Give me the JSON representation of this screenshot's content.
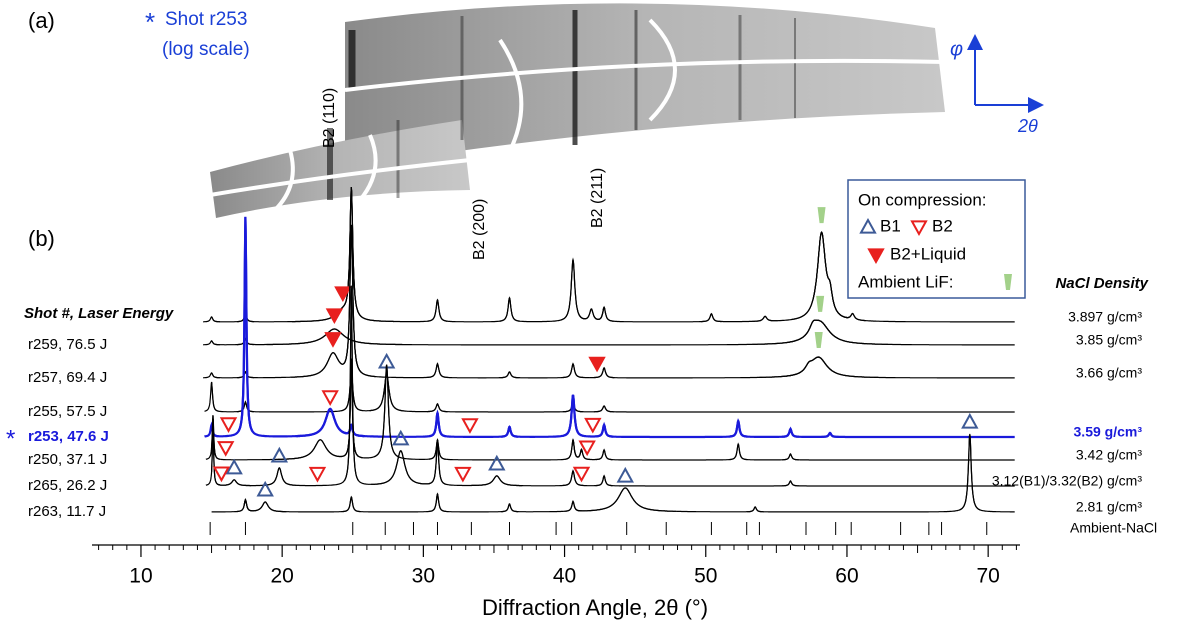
{
  "panel_a": {
    "label": "(a)",
    "star": "*",
    "shot": "Shot r253",
    "scale": "(log scale)",
    "reflections": [
      "B2 (110)",
      "B2 (200)",
      "B2 (211)"
    ],
    "axis_phi": "φ",
    "axis_2theta": "2θ"
  },
  "chart_data": {
    "type": "line",
    "label": "(b)",
    "xlabel": "Diffraction Angle, 2θ (°)",
    "xlim": [
      7,
      72
    ],
    "xticks": [
      10,
      20,
      30,
      40,
      50,
      60,
      70
    ],
    "xminorticks": [
      7,
      8,
      9,
      11,
      12,
      13,
      14,
      15,
      16,
      17,
      18,
      19,
      21,
      22,
      23,
      24,
      25,
      26,
      27,
      28,
      29,
      31,
      32,
      33,
      34,
      35,
      36,
      37,
      38,
      39,
      41,
      42,
      43,
      44,
      45,
      46,
      47,
      48,
      49,
      51,
      52,
      53,
      54,
      55,
      56,
      57,
      58,
      59,
      61,
      62,
      63,
      64,
      65,
      66,
      67,
      68,
      69,
      71,
      72
    ],
    "row_header": "Shot #, Laser Energy",
    "density_header": "NaCl Density",
    "legend": {
      "title": "On compression:",
      "b1": "B1",
      "b2": "B2",
      "b2_liquid": "B2+Liquid",
      "lif": "Ambient LiF:"
    },
    "marker_colors": {
      "b1": "#3d5a96",
      "b2": "#e8201e",
      "lif": "#a3d18a"
    },
    "reference": {
      "name": "Ambient-NaCl",
      "x": [
        14.9,
        17.4,
        25.0,
        27.3,
        29.3,
        31.0,
        33.4,
        36.1,
        39.4,
        40.5,
        44.4,
        47.2,
        50.4,
        52.9,
        53.8,
        57.1,
        59.2,
        60.3,
        63.8,
        65.8,
        66.7,
        69.9
      ]
    },
    "series": [
      {
        "name": null,
        "density": "3.897 g/cm³",
        "color": "#000000",
        "peak_x": [
          15.0,
          17.4,
          24.3,
          24.9,
          31.0,
          36.1,
          40.6,
          41.9,
          42.8,
          50.4,
          54.2,
          58.2,
          58.8,
          60.4
        ],
        "peak_height": [
          5,
          8,
          10,
          130,
          22,
          24,
          62,
          12,
          14,
          8,
          5,
          88,
          18,
          6
        ],
        "peak_width": [
          0.1,
          0.1,
          0.6,
          0.12,
          0.12,
          0.12,
          0.15,
          0.15,
          0.12,
          0.12,
          0.15,
          0.35,
          0.2,
          0.15
        ],
        "b1": [],
        "b2": [],
        "b2_liquid": [
          24.3
        ],
        "lif": [
          58.2
        ]
      },
      {
        "name": "r259, 76.5 J",
        "density": "3.85 g/cm³",
        "color": "#000000",
        "peak_x": [
          15.0,
          17.4,
          23.7,
          57.6,
          58.1
        ],
        "peak_height": [
          4,
          6,
          16,
          8,
          22
        ],
        "peak_width": [
          0.1,
          0.1,
          0.8,
          0.3,
          0.8
        ],
        "b1": [],
        "b2": [],
        "b2_liquid": [
          23.7
        ],
        "lif": [
          58.1
        ]
      },
      {
        "name": "r257, 69.4 J",
        "density": "3.66 g/cm³",
        "color": "#000000",
        "peak_x": [
          15.0,
          17.4,
          23.6,
          24.9,
          31.0,
          36.1,
          40.6,
          42.8,
          57.3,
          58.0
        ],
        "peak_height": [
          5,
          6,
          24,
          150,
          14,
          6,
          14,
          10,
          6,
          20
        ],
        "peak_width": [
          0.1,
          0.1,
          0.5,
          0.12,
          0.12,
          0.12,
          0.12,
          0.12,
          0.3,
          0.7
        ],
        "b1": [],
        "b2": [],
        "b2_liquid": [
          23.6,
          42.3
        ],
        "lif": [
          58.0
        ]
      },
      {
        "name": "r255, 57.5 J",
        "density": null,
        "color": "#000000",
        "peak_x": [
          15.0,
          17.4,
          24.9,
          27.4,
          31.0,
          40.6,
          42.8
        ],
        "peak_height": [
          30,
          10,
          40,
          38,
          8,
          8,
          6
        ],
        "peak_width": [
          0.08,
          0.1,
          0.12,
          0.2,
          0.12,
          0.12,
          0.12
        ],
        "b1": [
          27.4
        ],
        "b2": [],
        "b2_liquid": [],
        "lif": []
      },
      {
        "name": "r253, 47.6 J",
        "density": "3.59 g/cm³",
        "color": "#1a1adb",
        "peak_x": [
          15.0,
          17.4,
          23.4,
          24.9,
          31.0,
          36.1,
          40.6,
          42.8,
          52.3,
          56.0,
          58.8
        ],
        "peak_height": [
          12,
          220,
          28,
          10,
          24,
          10,
          42,
          12,
          16,
          8,
          4
        ],
        "peak_width": [
          0.08,
          0.08,
          0.4,
          0.1,
          0.1,
          0.1,
          0.12,
          0.1,
          0.1,
          0.1,
          0.1
        ],
        "b1": [],
        "b2": [
          16.2,
          23.4,
          33.3,
          42.0
        ],
        "b2_liquid": [],
        "lif": []
      },
      {
        "name": "r250, 37.1 J",
        "density": "3.42 g/cm³",
        "color": "#000000",
        "peak_x": [
          15.1,
          22.7,
          24.9,
          27.4,
          31.0,
          40.6,
          41.2,
          42.8,
          52.3,
          56.0
        ],
        "peak_height": [
          45,
          20,
          100,
          95,
          20,
          20,
          10,
          10,
          16,
          6
        ],
        "peak_width": [
          0.06,
          0.5,
          0.08,
          0.15,
          0.1,
          0.1,
          0.1,
          0.1,
          0.1,
          0.1
        ],
        "b1": [],
        "b2": [
          16.0,
          41.6
        ],
        "b2_liquid": [],
        "lif": []
      },
      {
        "name": "r265, 26.2 J",
        "density": "3.12(B1)/3.32(B2) g/cm³",
        "color": "#000000",
        "peak_x": [
          15.1,
          16.6,
          19.8,
          24.9,
          28.4,
          31.0,
          35.2,
          40.6,
          42.8,
          56.0
        ],
        "peak_height": [
          70,
          6,
          18,
          200,
          35,
          45,
          10,
          15,
          10,
          5
        ],
        "peak_width": [
          0.05,
          0.2,
          0.2,
          0.08,
          0.35,
          0.1,
          0.3,
          0.12,
          0.1,
          0.1
        ],
        "b1": [
          16.6,
          19.8,
          28.4,
          35.2
        ],
        "b2": [
          15.7,
          22.5,
          32.8,
          41.2
        ],
        "b2_liquid": [],
        "lif": []
      },
      {
        "name": "r263, 11.7 J",
        "density": "2.81 g/cm³",
        "color": "#000000",
        "peak_x": [
          17.4,
          18.8,
          24.9,
          31.0,
          36.1,
          40.6,
          44.3,
          53.5,
          68.7
        ],
        "peak_height": [
          12,
          10,
          15,
          18,
          8,
          10,
          24,
          5,
          78
        ],
        "peak_width": [
          0.1,
          0.25,
          0.1,
          0.1,
          0.1,
          0.1,
          0.6,
          0.1,
          0.12
        ],
        "b1": [
          18.8,
          44.3,
          68.7
        ],
        "b2": [],
        "b2_liquid": [],
        "lif": []
      }
    ]
  }
}
